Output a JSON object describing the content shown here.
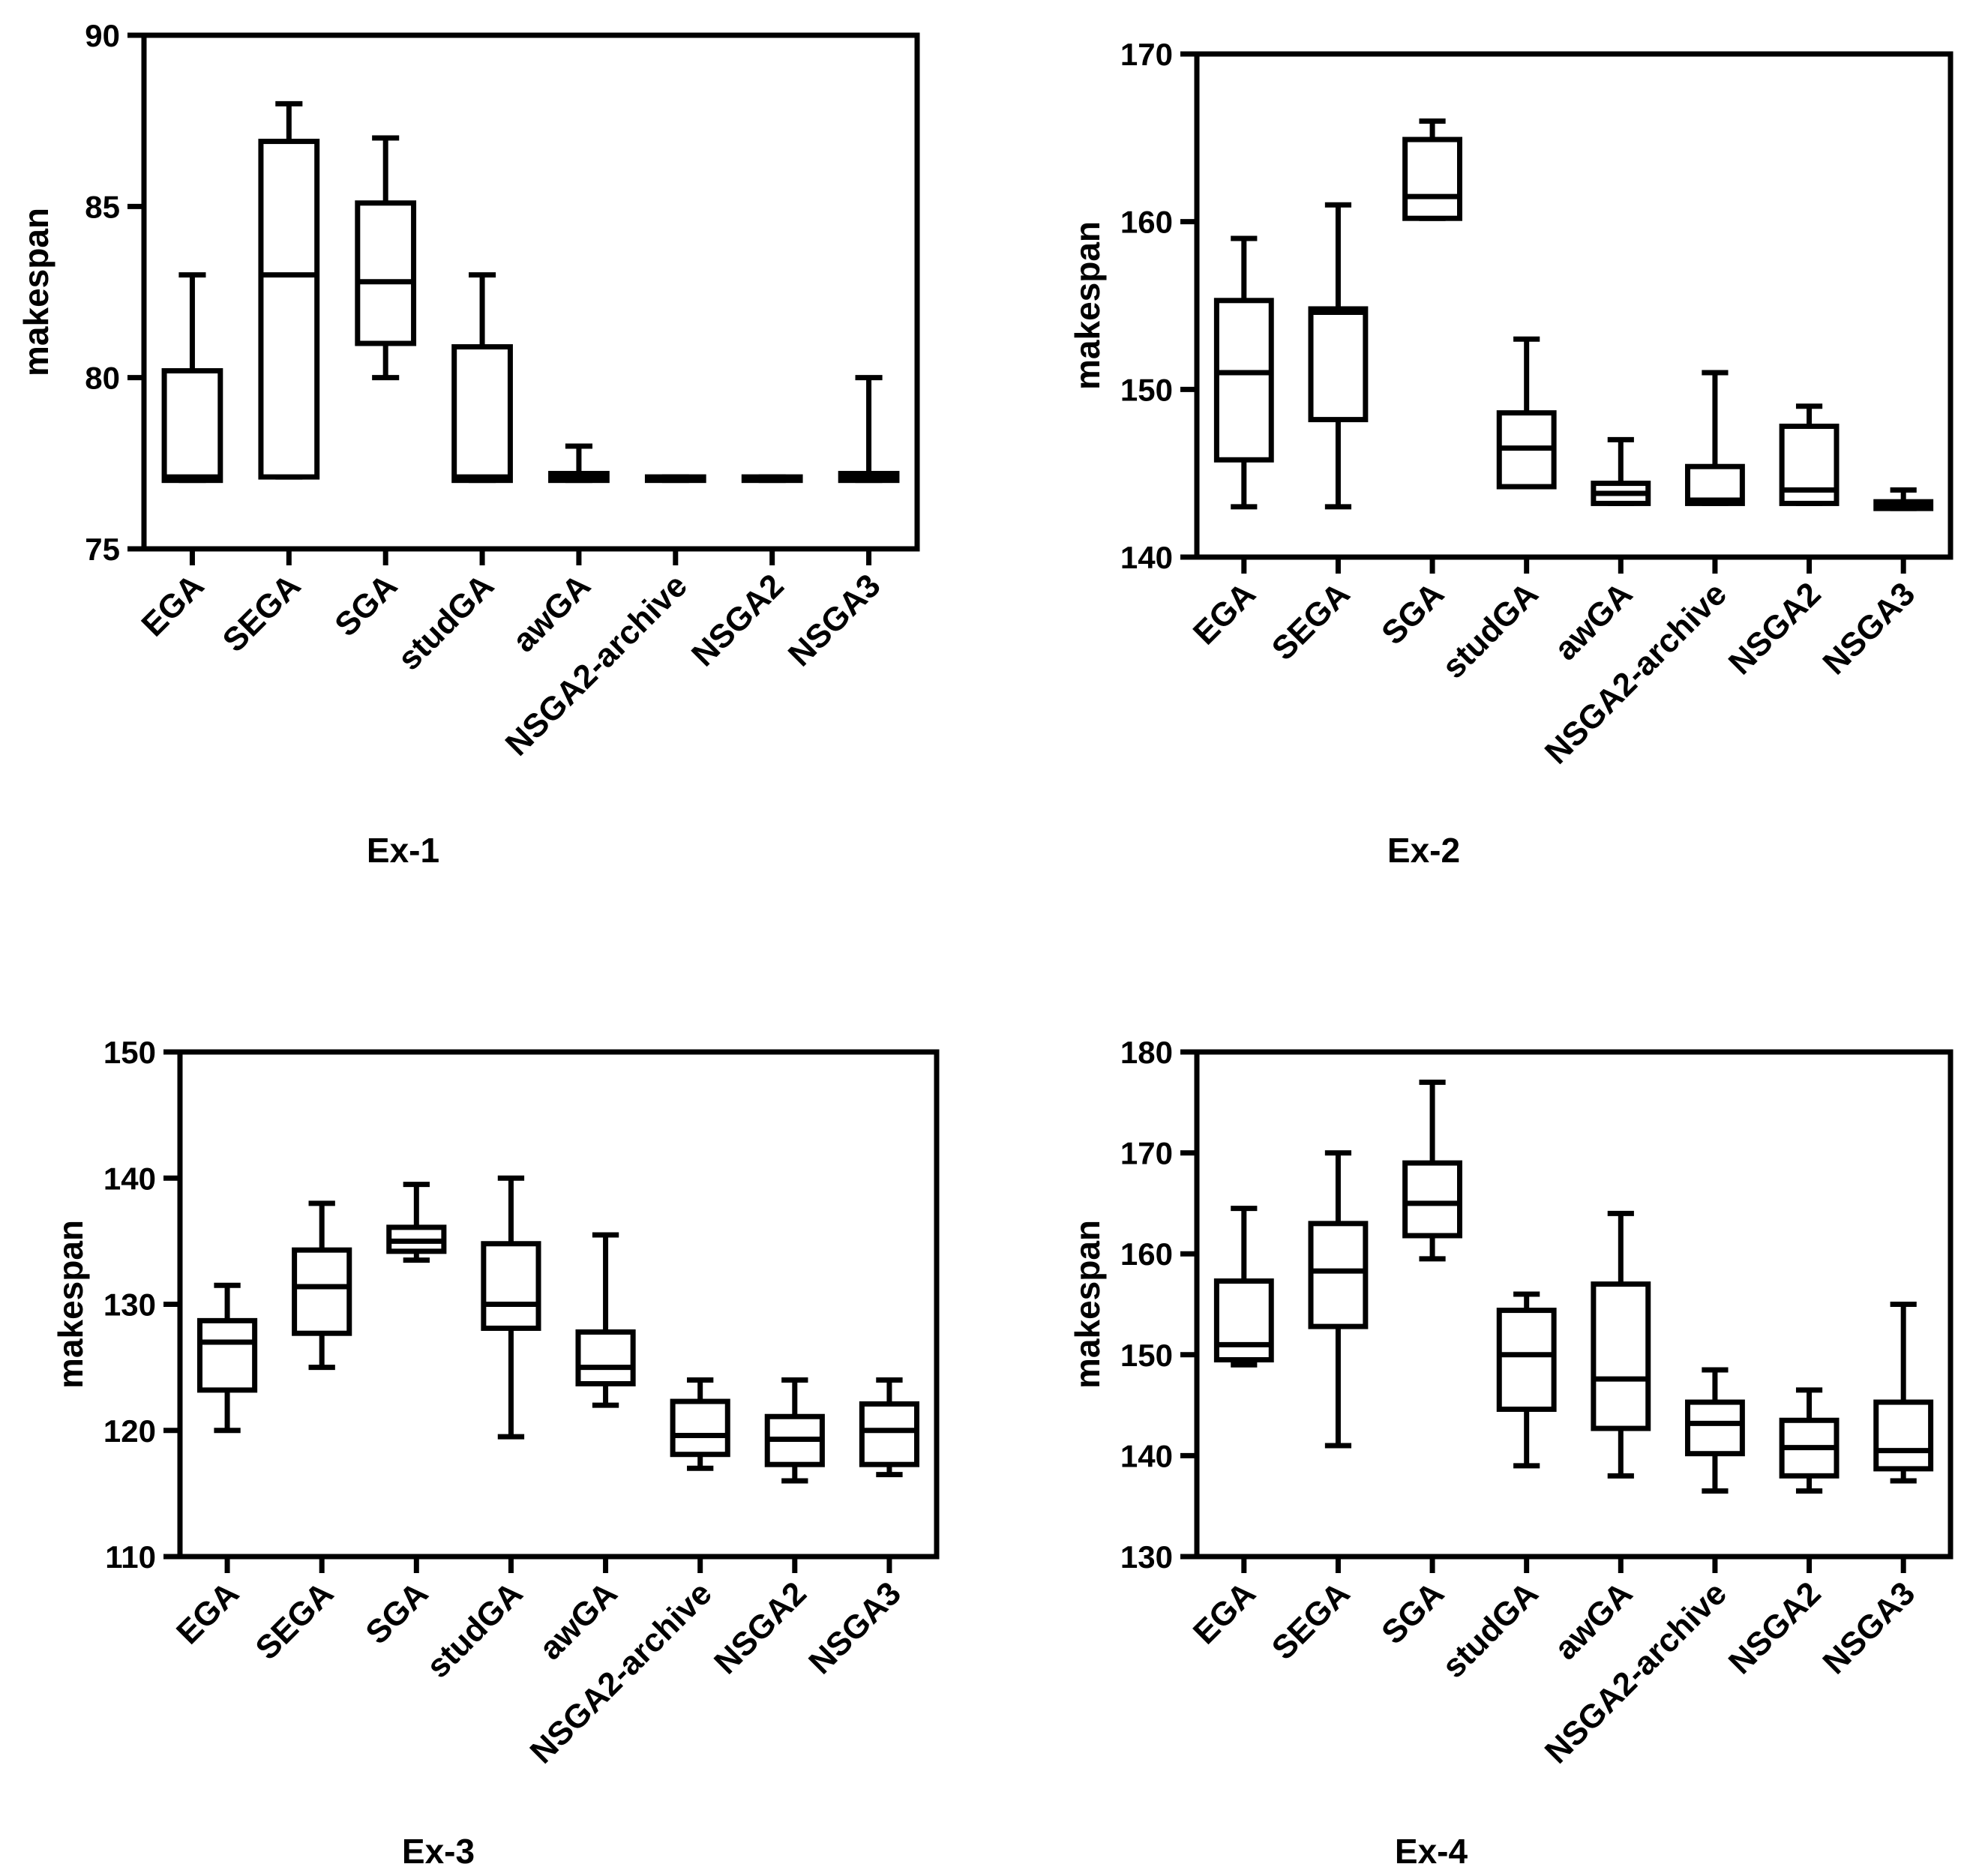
{
  "chart_data": [
    {
      "type": "box",
      "title": "Ex-1",
      "xlabel": "Ex-1",
      "ylabel": "makespan",
      "ylim": [
        75,
        90
      ],
      "yticks": [
        75,
        80,
        85,
        90
      ],
      "categories": [
        "EGA",
        "SEGA",
        "SGA",
        "studGA",
        "awGA",
        "NSGA2-archive",
        "NSGA2",
        "NSGA3"
      ],
      "boxes": [
        {
          "min": 77,
          "q1": 77,
          "median": 77.1,
          "q3": 80.2,
          "max": 83
        },
        {
          "min": 77.1,
          "q1": 77.1,
          "median": 83,
          "q3": 86.9,
          "max": 88
        },
        {
          "min": 80,
          "q1": 81,
          "median": 82.8,
          "q3": 85.1,
          "max": 87
        },
        {
          "min": 77,
          "q1": 77,
          "median": 77.1,
          "q3": 80.9,
          "max": 83
        },
        {
          "min": 77,
          "q1": 77,
          "median": 77.1,
          "q3": 77.2,
          "max": 78
        },
        {
          "min": 77,
          "q1": 77,
          "median": 77.05,
          "q3": 77.1,
          "max": 77.1
        },
        {
          "min": 77,
          "q1": 77,
          "median": 77.05,
          "q3": 77.1,
          "max": 77.1
        },
        {
          "min": 77,
          "q1": 77,
          "median": 77.1,
          "q3": 77.2,
          "max": 80
        }
      ]
    },
    {
      "type": "box",
      "title": "Ex-2",
      "xlabel": "Ex-2",
      "ylabel": "makespan",
      "ylim": [
        140,
        170
      ],
      "yticks": [
        140,
        150,
        160,
        170
      ],
      "categories": [
        "EGA",
        "SEGA",
        "SGA",
        "studGA",
        "awGA",
        "NSGA2-archive",
        "NSGA2",
        "NSGA3"
      ],
      "boxes": [
        {
          "min": 143,
          "q1": 145.8,
          "median": 151,
          "q3": 155.3,
          "max": 159
        },
        {
          "min": 143,
          "q1": 148.2,
          "median": 154.6,
          "q3": 154.8,
          "max": 161
        },
        {
          "min": 160.2,
          "q1": 160.2,
          "median": 161.5,
          "q3": 164.9,
          "max": 166
        },
        {
          "min": 144.2,
          "q1": 144.2,
          "median": 146.5,
          "q3": 148.6,
          "max": 153
        },
        {
          "min": 143.2,
          "q1": 143.2,
          "median": 143.8,
          "q3": 144.4,
          "max": 147
        },
        {
          "min": 143.2,
          "q1": 143.2,
          "median": 143.4,
          "q3": 145.4,
          "max": 151
        },
        {
          "min": 143.2,
          "q1": 143.2,
          "median": 144,
          "q3": 147.8,
          "max": 149
        },
        {
          "min": 142.9,
          "q1": 142.9,
          "median": 143.1,
          "q3": 143.3,
          "max": 144
        }
      ]
    },
    {
      "type": "box",
      "title": "Ex-3",
      "xlabel": "Ex-3",
      "ylabel": "makespan",
      "ylim": [
        110,
        150
      ],
      "yticks": [
        110,
        120,
        130,
        140,
        150
      ],
      "categories": [
        "EGA",
        "SEGA",
        "SGA",
        "studGA",
        "awGA",
        "NSGA2-archive",
        "NSGA2",
        "NSGA3"
      ],
      "boxes": [
        {
          "min": 120,
          "q1": 123.2,
          "median": 127,
          "q3": 128.7,
          "max": 131.5
        },
        {
          "min": 125,
          "q1": 127.7,
          "median": 131.4,
          "q3": 134.3,
          "max": 138
        },
        {
          "min": 133.5,
          "q1": 134.2,
          "median": 135,
          "q3": 136.1,
          "max": 139.5
        },
        {
          "min": 119.5,
          "q1": 128.1,
          "median": 130,
          "q3": 134.8,
          "max": 140
        },
        {
          "min": 122,
          "q1": 123.7,
          "median": 125,
          "q3": 127.8,
          "max": 135.5
        },
        {
          "min": 117,
          "q1": 118.1,
          "median": 119.6,
          "q3": 122.3,
          "max": 124
        },
        {
          "min": 116,
          "q1": 117.3,
          "median": 119.3,
          "q3": 121.1,
          "max": 124
        },
        {
          "min": 116.5,
          "q1": 117.3,
          "median": 120,
          "q3": 122.1,
          "max": 124
        }
      ]
    },
    {
      "type": "box",
      "title": "Ex-4",
      "xlabel": "Ex-4",
      "ylabel": "makespan",
      "ylim": [
        130,
        180
      ],
      "yticks": [
        130,
        140,
        150,
        160,
        170,
        180
      ],
      "categories": [
        "EGA",
        "SEGA",
        "SGA",
        "studGA",
        "awGA",
        "NSGA2-archive",
        "NSGA2",
        "NSGA3"
      ],
      "boxes": [
        {
          "min": 149,
          "q1": 149.5,
          "median": 151,
          "q3": 157.3,
          "max": 164.5
        },
        {
          "min": 141,
          "q1": 152.8,
          "median": 158.3,
          "q3": 163,
          "max": 170
        },
        {
          "min": 159.5,
          "q1": 161.8,
          "median": 165,
          "q3": 169,
          "max": 177
        },
        {
          "min": 139,
          "q1": 144.6,
          "median": 150,
          "q3": 154.4,
          "max": 156
        },
        {
          "min": 138,
          "q1": 142.7,
          "median": 147.6,
          "q3": 157,
          "max": 164
        },
        {
          "min": 136.5,
          "q1": 140.2,
          "median": 143.2,
          "q3": 145.3,
          "max": 148.5
        },
        {
          "min": 136.5,
          "q1": 138,
          "median": 140.8,
          "q3": 143.5,
          "max": 146.5
        },
        {
          "min": 137.5,
          "q1": 138.7,
          "median": 140.5,
          "q3": 145.3,
          "max": 155
        }
      ]
    }
  ]
}
